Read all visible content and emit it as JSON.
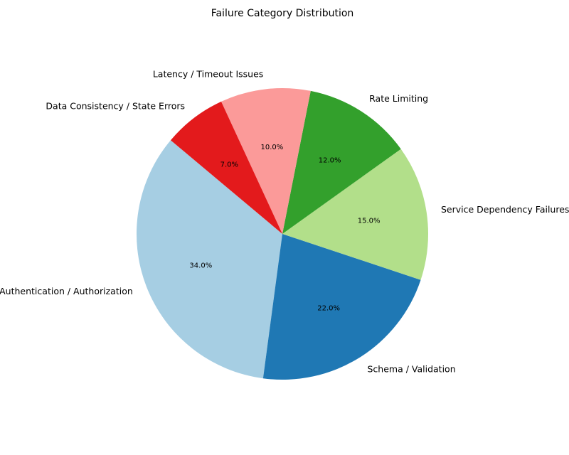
{
  "chart_data": {
    "type": "pie",
    "title": "Failure Category Distribution",
    "start_angle_deg": 140,
    "direction": "counterclockwise",
    "slices": [
      {
        "label": "Authentication / Authorization",
        "value": 34.0,
        "pct_label": "34.0%",
        "color": "#a6cee3"
      },
      {
        "label": "Schema / Validation",
        "value": 22.0,
        "pct_label": "22.0%",
        "color": "#1f78b4"
      },
      {
        "label": "Service Dependency Failures",
        "value": 15.0,
        "pct_label": "15.0%",
        "color": "#b2df8a"
      },
      {
        "label": "Rate Limiting",
        "value": 12.0,
        "pct_label": "12.0%",
        "color": "#33a02c"
      },
      {
        "label": "Latency / Timeout Issues",
        "value": 10.0,
        "pct_label": "10.0%",
        "color": "#fb9a99"
      },
      {
        "label": "Data Consistency / State Errors",
        "value": 7.0,
        "pct_label": "7.0%",
        "color": "#e31a1c"
      }
    ]
  }
}
